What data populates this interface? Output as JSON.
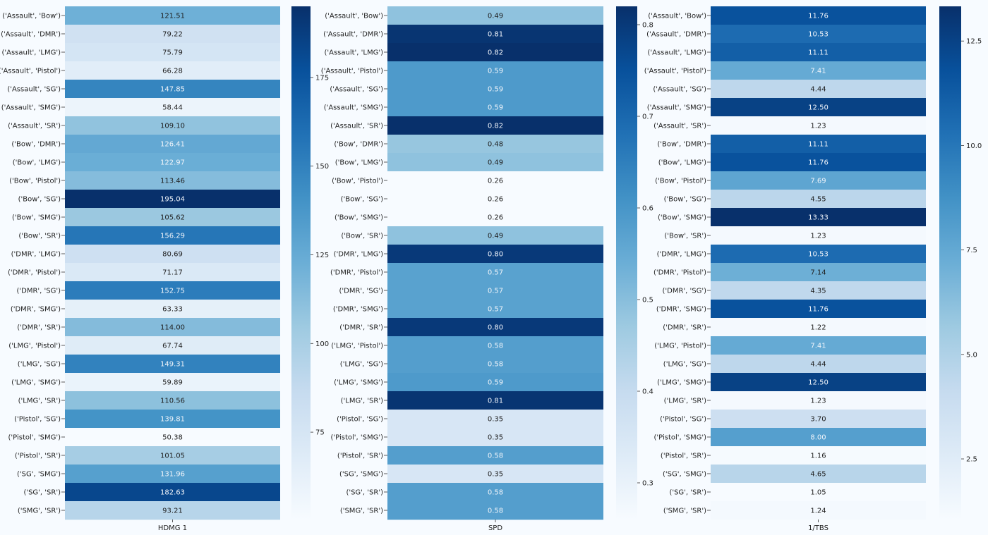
{
  "chart_data": [
    {
      "type": "heatmap",
      "xlabel": "HDMG 1",
      "categories": [
        "('Assault', 'Bow')",
        "('Assault', 'DMR')",
        "('Assault', 'LMG')",
        "('Assault', 'Pistol')",
        "('Assault', 'SG')",
        "('Assault', 'SMG')",
        "('Assault', 'SR')",
        "('Bow', 'DMR')",
        "('Bow', 'LMG')",
        "('Bow', 'Pistol')",
        "('Bow', 'SG')",
        "('Bow', 'SMG')",
        "('Bow', 'SR')",
        "('DMR', 'LMG')",
        "('DMR', 'Pistol')",
        "('DMR', 'SG')",
        "('DMR', 'SMG')",
        "('DMR', 'SR')",
        "('LMG', 'Pistol')",
        "('LMG', 'SG')",
        "('LMG', 'SMG')",
        "('LMG', 'SR')",
        "('Pistol', 'SG')",
        "('Pistol', 'SMG')",
        "('Pistol', 'SR')",
        "('SG', 'SMG')",
        "('SG', 'SR')",
        "('SMG', 'SR')"
      ],
      "values": [
        121.51,
        79.22,
        75.79,
        66.28,
        147.85,
        58.44,
        109.1,
        126.41,
        122.97,
        113.46,
        195.04,
        105.62,
        156.29,
        80.69,
        71.17,
        152.75,
        63.33,
        114.0,
        67.74,
        149.31,
        59.89,
        110.56,
        139.81,
        50.38,
        101.05,
        131.96,
        182.63,
        93.21
      ],
      "labels": [
        "121.51",
        "79.22",
        "75.79",
        "66.28",
        "147.85",
        "58.44",
        "109.10",
        "126.41",
        "122.97",
        "113.46",
        "195.04",
        "105.62",
        "156.29",
        "80.69",
        "71.17",
        "152.75",
        "63.33",
        "114.00",
        "67.74",
        "149.31",
        "59.89",
        "110.56",
        "139.81",
        "50.38",
        "101.05",
        "131.96",
        "182.63",
        "93.21"
      ],
      "colormap": "Blues",
      "vrange": [
        50.38,
        195.04
      ],
      "colorbar_ticks": [
        75,
        100,
        125,
        150,
        175
      ],
      "colorbar_tick_labels": [
        "75",
        "100",
        "125",
        "150",
        "175"
      ]
    },
    {
      "type": "heatmap",
      "xlabel": "SPD",
      "categories": [
        "('Assault', 'Bow')",
        "('Assault', 'DMR')",
        "('Assault', 'LMG')",
        "('Assault', 'Pistol')",
        "('Assault', 'SG')",
        "('Assault', 'SMG')",
        "('Assault', 'SR')",
        "('Bow', 'DMR')",
        "('Bow', 'LMG')",
        "('Bow', 'Pistol')",
        "('Bow', 'SG')",
        "('Bow', 'SMG')",
        "('Bow', 'SR')",
        "('DMR', 'LMG')",
        "('DMR', 'Pistol')",
        "('DMR', 'SG')",
        "('DMR', 'SMG')",
        "('DMR', 'SR')",
        "('LMG', 'Pistol')",
        "('LMG', 'SG')",
        "('LMG', 'SMG')",
        "('LMG', 'SR')",
        "('Pistol', 'SG')",
        "('Pistol', 'SMG')",
        "('Pistol', 'SR')",
        "('SG', 'SMG')",
        "('SG', 'SR')",
        "('SMG', 'SR')"
      ],
      "values": [
        0.49,
        0.81,
        0.82,
        0.59,
        0.59,
        0.59,
        0.82,
        0.48,
        0.49,
        0.26,
        0.26,
        0.26,
        0.49,
        0.8,
        0.57,
        0.57,
        0.57,
        0.8,
        0.58,
        0.58,
        0.59,
        0.81,
        0.35,
        0.35,
        0.58,
        0.35,
        0.58,
        0.58
      ],
      "labels": [
        "0.49",
        "0.81",
        "0.82",
        "0.59",
        "0.59",
        "0.59",
        "0.82",
        "0.48",
        "0.49",
        "0.26",
        "0.26",
        "0.26",
        "0.49",
        "0.80",
        "0.57",
        "0.57",
        "0.57",
        "0.80",
        "0.58",
        "0.58",
        "0.59",
        "0.81",
        "0.35",
        "0.35",
        "0.58",
        "0.35",
        "0.58",
        "0.58"
      ],
      "colormap": "Blues",
      "vrange": [
        0.26,
        0.82
      ],
      "colorbar_ticks": [
        0.3,
        0.4,
        0.5,
        0.6,
        0.7,
        0.8
      ],
      "colorbar_tick_labels": [
        "0.3",
        "0.4",
        "0.5",
        "0.6",
        "0.7",
        "0.8"
      ]
    },
    {
      "type": "heatmap",
      "xlabel": "1/TBS",
      "categories": [
        "('Assault', 'Bow')",
        "('Assault', 'DMR')",
        "('Assault', 'LMG')",
        "('Assault', 'Pistol')",
        "('Assault', 'SG')",
        "('Assault', 'SMG')",
        "('Assault', 'SR')",
        "('Bow', 'DMR')",
        "('Bow', 'LMG')",
        "('Bow', 'Pistol')",
        "('Bow', 'SG')",
        "('Bow', 'SMG')",
        "('Bow', 'SR')",
        "('DMR', 'LMG')",
        "('DMR', 'Pistol')",
        "('DMR', 'SG')",
        "('DMR', 'SMG')",
        "('DMR', 'SR')",
        "('LMG', 'Pistol')",
        "('LMG', 'SG')",
        "('LMG', 'SMG')",
        "('LMG', 'SR')",
        "('Pistol', 'SG')",
        "('Pistol', 'SMG')",
        "('Pistol', 'SR')",
        "('SG', 'SMG')",
        "('SG', 'SR')",
        "('SMG', 'SR')"
      ],
      "values": [
        11.76,
        10.53,
        11.11,
        7.41,
        4.44,
        12.5,
        1.23,
        11.11,
        11.76,
        7.69,
        4.55,
        13.33,
        1.23,
        10.53,
        7.14,
        4.35,
        11.76,
        1.22,
        7.41,
        4.44,
        12.5,
        1.23,
        3.7,
        8.0,
        1.16,
        4.65,
        1.05,
        1.24
      ],
      "labels": [
        "11.76",
        "10.53",
        "11.11",
        "7.41",
        "4.44",
        "12.50",
        "1.23",
        "11.11",
        "11.76",
        "7.69",
        "4.55",
        "13.33",
        "1.23",
        "10.53",
        "7.14",
        "4.35",
        "11.76",
        "1.22",
        "7.41",
        "4.44",
        "12.50",
        "1.23",
        "3.70",
        "8.00",
        "1.16",
        "4.65",
        "1.05",
        "1.24"
      ],
      "colormap": "Blues",
      "vrange": [
        1.05,
        13.33
      ],
      "colorbar_ticks": [
        2.5,
        5.0,
        7.5,
        10.0,
        12.5
      ],
      "colorbar_tick_labels": [
        "2.5",
        "5.0",
        "7.5",
        "10.0",
        "12.5"
      ]
    }
  ]
}
